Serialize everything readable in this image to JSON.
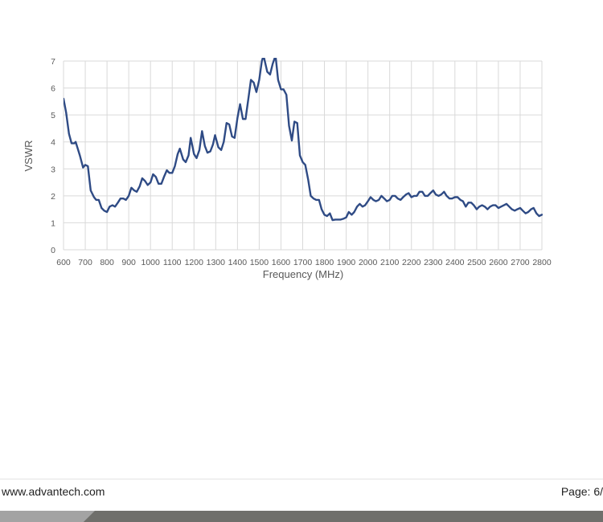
{
  "chart_data": {
    "type": "line",
    "title": "",
    "xlabel": "Frequency (MHz)",
    "ylabel": "VSWR",
    "xlim": [
      600,
      2800
    ],
    "ylim": [
      0,
      7
    ],
    "xticks": [
      600,
      700,
      800,
      900,
      1000,
      1100,
      1200,
      1300,
      1400,
      1500,
      1600,
      1700,
      1800,
      1900,
      2000,
      2100,
      2200,
      2300,
      2400,
      2500,
      2600,
      2700,
      2800
    ],
    "yticks": [
      0,
      1,
      2,
      3,
      4,
      5,
      6,
      7
    ],
    "grid": true,
    "line_color": "#2F4B85",
    "series": [
      {
        "x": [
          600,
          612,
          625,
          637,
          650,
          656,
          675,
          690,
          700,
          712,
          725,
          740,
          750,
          762,
          775,
          787,
          800,
          812,
          825,
          837,
          850,
          862,
          875,
          887,
          900,
          912,
          925,
          937,
          950,
          962,
          975,
          987,
          1000,
          1012,
          1025,
          1037,
          1050,
          1062,
          1075,
          1087,
          1100,
          1112,
          1125,
          1135,
          1150,
          1162,
          1175,
          1185,
          1200,
          1212,
          1225,
          1237,
          1250,
          1262,
          1275,
          1287,
          1297,
          1312,
          1325,
          1337,
          1350,
          1362,
          1375,
          1387,
          1400,
          1412,
          1425,
          1437,
          1450,
          1462,
          1475,
          1487,
          1500,
          1512,
          1520,
          1537,
          1550,
          1562,
          1575,
          1587,
          1600,
          1612,
          1625,
          1637,
          1650,
          1662,
          1675,
          1687,
          1700,
          1712,
          1725,
          1737,
          1750,
          1762,
          1775,
          1787,
          1800,
          1812,
          1825,
          1837,
          1850,
          1862,
          1875,
          1887,
          1900,
          1912,
          1925,
          1937,
          1950,
          1962,
          1975,
          1987,
          2000,
          2012,
          2025,
          2037,
          2050,
          2062,
          2075,
          2087,
          2100,
          2112,
          2125,
          2137,
          2150,
          2162,
          2175,
          2187,
          2200,
          2212,
          2225,
          2237,
          2250,
          2262,
          2275,
          2287,
          2300,
          2312,
          2325,
          2337,
          2350,
          2362,
          2375,
          2387,
          2400,
          2412,
          2425,
          2437,
          2450,
          2462,
          2475,
          2487,
          2500,
          2512,
          2525,
          2537,
          2550,
          2562,
          2575,
          2587,
          2600,
          2612,
          2625,
          2637,
          2650,
          2662,
          2675,
          2687,
          2700,
          2712,
          2725,
          2737,
          2750,
          2762,
          2775,
          2787,
          2800
        ],
        "y": [
          5.6,
          5.1,
          4.3,
          3.95,
          3.95,
          4.0,
          3.5,
          3.05,
          3.15,
          3.1,
          2.2,
          1.95,
          1.85,
          1.85,
          1.55,
          1.45,
          1.4,
          1.6,
          1.65,
          1.6,
          1.75,
          1.9,
          1.9,
          1.85,
          2.0,
          2.3,
          2.2,
          2.15,
          2.35,
          2.65,
          2.55,
          2.4,
          2.5,
          2.8,
          2.7,
          2.45,
          2.45,
          2.7,
          2.95,
          2.85,
          2.85,
          3.1,
          3.55,
          3.75,
          3.35,
          3.25,
          3.5,
          4.15,
          3.55,
          3.4,
          3.7,
          4.4,
          3.85,
          3.6,
          3.65,
          3.9,
          4.25,
          3.8,
          3.7,
          4.0,
          4.7,
          4.65,
          4.2,
          4.15,
          4.9,
          5.4,
          4.85,
          4.85,
          5.6,
          6.3,
          6.2,
          5.85,
          6.3,
          7.0,
          7.2,
          6.6,
          6.5,
          6.9,
          7.2,
          6.3,
          5.95,
          5.95,
          5.75,
          4.6,
          4.05,
          4.75,
          4.7,
          3.5,
          3.25,
          3.15,
          2.6,
          2.0,
          1.9,
          1.85,
          1.85,
          1.5,
          1.3,
          1.25,
          1.35,
          1.1,
          1.12,
          1.12,
          1.12,
          1.15,
          1.2,
          1.4,
          1.3,
          1.4,
          1.6,
          1.7,
          1.6,
          1.65,
          1.8,
          1.95,
          1.85,
          1.8,
          1.85,
          2.0,
          1.9,
          1.8,
          1.85,
          2.0,
          2.0,
          1.9,
          1.85,
          1.95,
          2.05,
          2.1,
          1.95,
          2.0,
          2.0,
          2.15,
          2.15,
          2.0,
          2.0,
          2.1,
          2.2,
          2.05,
          2.0,
          2.05,
          2.15,
          2.0,
          1.9,
          1.9,
          1.95,
          1.95,
          1.85,
          1.8,
          1.6,
          1.75,
          1.75,
          1.65,
          1.5,
          1.6,
          1.65,
          1.6,
          1.5,
          1.6,
          1.65,
          1.65,
          1.55,
          1.6,
          1.65,
          1.7,
          1.6,
          1.5,
          1.45,
          1.5,
          1.55,
          1.45,
          1.35,
          1.4,
          1.5,
          1.55,
          1.35,
          1.25,
          1.3
        ]
      }
    ]
  },
  "footer": {
    "url": "www.advantech.com",
    "page": "Page: 6/"
  }
}
